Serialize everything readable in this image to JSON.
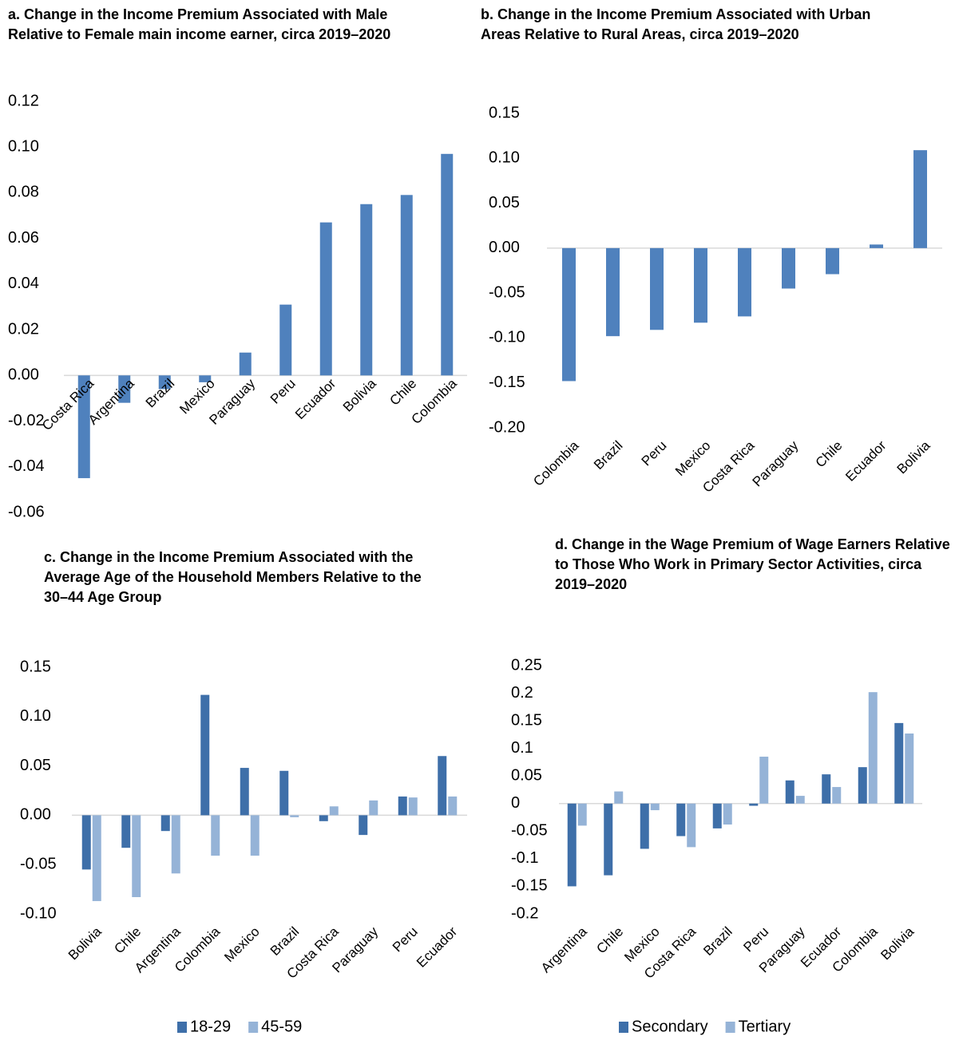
{
  "chart_data": [
    {
      "type": "bar",
      "title": "a. Change in the Income Premium Associated with Male Relative to Female main income earner, circa 2019–2020",
      "categories": [
        "Costa Rica",
        "Argentina",
        "Brazil",
        "Mexico",
        "Paraguay",
        "Peru",
        "Ecuador",
        "Bolivia",
        "Chile",
        "Colombia"
      ],
      "values": [
        -0.045,
        -0.012,
        -0.006,
        -0.003,
        0.01,
        0.031,
        0.067,
        0.075,
        0.079,
        0.097
      ],
      "color": "#4f81bd",
      "ylim": [
        -0.06,
        0.12
      ],
      "yticks": [
        -0.06,
        -0.04,
        -0.02,
        {
          "value": 0,
          "label": "0.00"
        },
        0.02,
        0.04,
        0.06,
        0.08,
        {
          "value": 0.1,
          "label": "0.10"
        },
        0.12
      ]
    },
    {
      "type": "bar",
      "title": "b. Change in the Income Premium Associated with Urban Areas Relative to Rural Areas, circa 2019–2020",
      "categories": [
        "Colombia",
        "Brazil",
        "Peru",
        "Mexico",
        "Costa Rica",
        "Paraguay",
        "Chile",
        "Ecuador",
        "Bolivia"
      ],
      "values": [
        -0.148,
        -0.098,
        -0.091,
        -0.083,
        -0.076,
        -0.045,
        -0.029,
        0.004,
        0.109
      ],
      "color": "#4f81bd",
      "ylim": [
        -0.2,
        0.15
      ],
      "yticks": [
        {
          "value": -0.2,
          "label": "-0.20"
        },
        -0.15,
        {
          "value": -0.1,
          "label": "-0.10"
        },
        -0.05,
        {
          "value": 0,
          "label": "0.00"
        },
        0.05,
        {
          "value": 0.1,
          "label": "0.10"
        },
        0.15
      ]
    },
    {
      "type": "bar",
      "title": "c. Change in the Income Premium Associated with the Average Age of the Household Members Relative to the 30–44 Age Group",
      "categories": [
        "Bolivia",
        "Chile",
        "Argentina",
        "Colombia",
        "Mexico",
        "Brazil",
        "Costa Rica",
        "Paraguay",
        "Peru",
        "Ecuador"
      ],
      "series": [
        {
          "name": "18-29",
          "color": "#3e6fa9",
          "values": [
            -0.055,
            -0.033,
            -0.016,
            0.122,
            0.048,
            0.045,
            -0.006,
            -0.02,
            0.019,
            0.06
          ]
        },
        {
          "name": "45-59",
          "color": "#95b3d7",
          "values": [
            -0.087,
            -0.083,
            -0.059,
            -0.041,
            -0.041,
            -0.002,
            0.009,
            0.015,
            0.018,
            0.019
          ]
        }
      ],
      "ylim": [
        -0.1,
        0.15
      ],
      "yticks": [
        {
          "value": -0.1,
          "label": "-0.10"
        },
        -0.05,
        {
          "value": 0,
          "label": "0.00"
        },
        0.05,
        {
          "value": 0.1,
          "label": "0.10"
        },
        0.15
      ]
    },
    {
      "type": "bar",
      "title": "d. Change in the Wage Premium of Wage Earners Relative to Those Who Work in Primary Sector Activities, circa 2019–2020",
      "categories": [
        "Argentina",
        "Chile",
        "Mexico",
        "Costa Rica",
        "Brazil",
        "Peru",
        "Paraguay",
        "Ecuador",
        "Colombia",
        "Bolivia"
      ],
      "series": [
        {
          "name": "Secondary",
          "color": "#3e6fa9",
          "values": [
            -0.15,
            -0.13,
            -0.082,
            -0.059,
            -0.045,
            -0.004,
            0.042,
            0.053,
            0.066,
            0.146
          ]
        },
        {
          "name": "Tertiary",
          "color": "#95b3d7",
          "values": [
            -0.04,
            0.022,
            -0.012,
            -0.079,
            -0.038,
            0.085,
            0.014,
            0.03,
            0.202,
            0.127
          ]
        }
      ],
      "ylim": [
        -0.2,
        0.25
      ],
      "yticks": [
        -0.2,
        -0.15,
        -0.1,
        -0.05,
        0,
        0.05,
        0.1,
        0.15,
        0.2,
        0.25
      ]
    }
  ]
}
